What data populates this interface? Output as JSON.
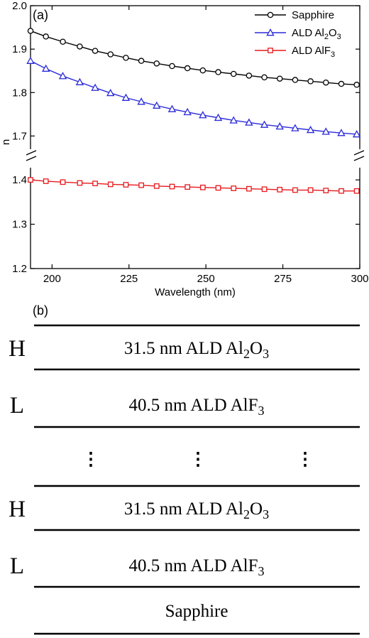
{
  "panel_a": {
    "label": "(a)",
    "chart_data": {
      "type": "line",
      "xlabel": "Wavelength (nm)",
      "ylabel": "n",
      "xlim": [
        193,
        300
      ],
      "ylim_lower": [
        1.2,
        1.45
      ],
      "ylim_upper": [
        1.65,
        2.0
      ],
      "axis_break": true,
      "x_ticks": [
        "200",
        "225",
        "250",
        "275",
        "300"
      ],
      "y_ticks_upper": [
        "1.7",
        "1.8",
        "1.9",
        "2.0"
      ],
      "y_ticks_lower": [
        "1.2",
        "1.3",
        "1.4"
      ],
      "x": [
        193,
        198,
        203.5,
        209,
        214,
        219,
        224,
        229,
        234,
        239,
        244,
        249,
        254,
        259,
        264,
        269,
        274,
        279,
        284,
        289,
        294,
        299
      ],
      "series": [
        {
          "name": "Sapphire",
          "color": "#000000",
          "marker": "circle",
          "values": [
            1.942,
            1.929,
            1.917,
            1.906,
            1.896,
            1.888,
            1.88,
            1.873,
            1.867,
            1.861,
            1.856,
            1.851,
            1.847,
            1.843,
            1.839,
            1.835,
            1.832,
            1.829,
            1.826,
            1.823,
            1.82,
            1.818
          ]
        },
        {
          "name": "ALD Al2O3",
          "color": "#2a2ad8",
          "marker": "triangle",
          "values": [
            1.873,
            1.855,
            1.838,
            1.824,
            1.811,
            1.799,
            1.788,
            1.779,
            1.77,
            1.762,
            1.755,
            1.748,
            1.742,
            1.736,
            1.731,
            1.726,
            1.722,
            1.718,
            1.714,
            1.71,
            1.707,
            1.704
          ]
        },
        {
          "name": "ALD AlF3",
          "color": "#e8181c",
          "marker": "square",
          "values": [
            1.4,
            1.397,
            1.395,
            1.393,
            1.392,
            1.39,
            1.389,
            1.388,
            1.386,
            1.385,
            1.384,
            1.383,
            1.382,
            1.381,
            1.38,
            1.379,
            1.378,
            1.377,
            1.377,
            1.376,
            1.375,
            1.375
          ]
        }
      ],
      "legend": {
        "placement": "top-right",
        "entries": [
          {
            "prefix": "Sapphire",
            "sub1": "",
            "mid": "",
            "sub2": ""
          },
          {
            "prefix": "ALD Al",
            "sub1": "2",
            "mid": "O",
            "sub2": "3"
          },
          {
            "prefix": "ALD AlF",
            "sub1": "3",
            "mid": "",
            "sub2": ""
          }
        ]
      }
    }
  },
  "panel_b": {
    "label": "(b)",
    "dots": "⋮",
    "layers": [
      {
        "side": "H",
        "main": "31.5 nm ALD Al",
        "sub1": "2",
        "mid": "O",
        "sub2": "3"
      },
      {
        "side": "L",
        "main": "40.5 nm ALD AlF",
        "sub1": "3",
        "mid": "",
        "sub2": ""
      },
      {
        "side": "H",
        "main": "31.5 nm ALD Al",
        "sub1": "2",
        "mid": "O",
        "sub2": "3"
      },
      {
        "side": "L",
        "main": "40.5 nm ALD AlF",
        "sub1": "3",
        "mid": "",
        "sub2": ""
      },
      {
        "side": "",
        "main": "Sapphire",
        "sub1": "",
        "mid": "",
        "sub2": ""
      }
    ]
  }
}
